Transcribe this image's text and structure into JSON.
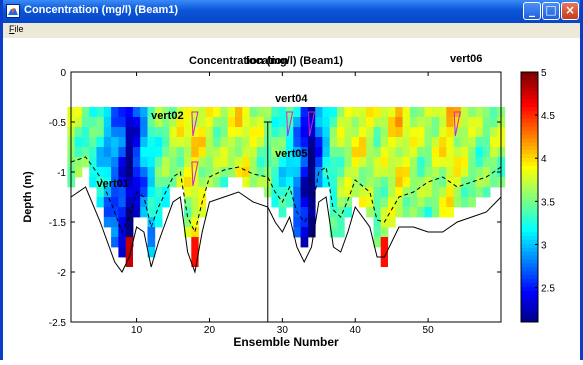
{
  "window": {
    "title": "Concentration (mg/l) (Beam1)",
    "menu": [
      {
        "label": "File"
      }
    ],
    "controls": {
      "minimize": "minimize",
      "maximize": "maximize",
      "close": "close"
    }
  },
  "plot": {
    "title_overlap": "Concentration (mg/l) (Beam1)",
    "xlabel": "Ensemble Number",
    "ylabel": "Depth (m)",
    "x_ticks": [
      "10",
      "20",
      "30",
      "40",
      "50"
    ],
    "y_ticks": [
      "0",
      "-0.5",
      "-1",
      "-1.5",
      "-2",
      "-2.5"
    ],
    "colorbar_ticks": [
      "5",
      "4.5",
      "4",
      "3.5",
      "3",
      "2.5"
    ],
    "vertical_labels": [
      "vert01",
      "vert02",
      "vert04",
      "vert05",
      "vert06"
    ],
    "overlapping_text": "location"
  },
  "colors": {
    "titlebar": "#0a55d8",
    "window_border": "#0a3ec8",
    "close_button": "#c73a1a"
  },
  "chart_data": {
    "type": "heatmap",
    "title": "Concentration (mg/l) (Beam1)",
    "xlabel": "Ensemble Number",
    "ylabel": "Depth (m)",
    "xlim": [
      1,
      60
    ],
    "ylim": [
      -2.5,
      0
    ],
    "colorbar_range": [
      2.1,
      5
    ],
    "depth_bins": [
      -0.4,
      -0.5,
      -0.6,
      -0.7,
      -0.8,
      -0.9,
      -1.0,
      -1.1,
      -1.2,
      -1.3,
      -1.4,
      -1.5,
      -1.6,
      -1.7,
      -1.8
    ],
    "mean_concentration_by_ensemble": [
      3.7,
      3.6,
      3.5,
      3.4,
      3.3,
      3.1,
      2.9,
      2.7,
      2.3,
      2.6,
      3.0,
      3.3,
      3.5,
      3.6,
      3.7,
      3.8,
      3.9,
      4.0,
      3.9,
      3.8,
      3.7,
      3.7,
      3.8,
      3.9,
      3.9,
      3.8,
      3.7,
      3.6,
      3.5,
      3.4,
      3.3,
      3.0,
      2.6,
      2.2,
      2.8,
      3.2,
      3.5,
      3.7,
      3.8,
      3.9,
      3.9,
      3.8,
      3.7,
      3.8,
      3.9,
      4.0,
      3.9,
      3.8,
      3.7,
      3.7,
      3.8,
      3.9,
      4.0,
      3.9,
      3.8,
      3.7,
      3.6,
      3.6,
      3.7,
      3.7
    ],
    "bottom_depth": {
      "x": [
        1,
        3,
        5,
        7,
        8,
        9,
        10,
        11,
        12,
        13,
        15,
        16,
        17,
        18,
        19,
        20,
        22,
        24,
        26,
        28,
        29,
        30,
        31,
        32,
        33,
        34,
        35,
        36,
        37,
        38,
        39,
        40,
        42,
        43,
        44,
        46,
        48,
        50,
        52,
        54,
        56,
        58,
        60
      ],
      "y": [
        -1.25,
        -1.15,
        -1.5,
        -1.9,
        -2.0,
        -1.85,
        -1.55,
        -1.6,
        -1.95,
        -1.7,
        -1.3,
        -1.25,
        -1.8,
        -2.0,
        -1.6,
        -1.3,
        -1.25,
        -1.2,
        -1.3,
        -1.35,
        -1.5,
        -1.6,
        -1.45,
        -1.75,
        -1.9,
        -1.75,
        -1.3,
        -1.25,
        -1.75,
        -1.8,
        -1.6,
        -1.35,
        -1.55,
        -1.85,
        -1.85,
        -1.55,
        -1.55,
        -1.6,
        -1.6,
        -1.5,
        -1.45,
        -1.4,
        -1.25
      ]
    },
    "water_level_dashed": {
      "x": [
        1,
        3,
        5,
        7,
        8,
        9,
        10,
        11,
        12,
        13,
        15,
        16,
        17,
        18,
        19,
        20,
        22,
        24,
        26,
        28,
        29,
        30,
        31,
        32,
        33,
        34,
        35,
        36,
        37,
        38,
        39,
        40,
        42,
        43,
        44,
        46,
        48,
        50,
        52,
        54,
        56,
        58,
        60
      ],
      "y": [
        -0.9,
        -0.85,
        -1.05,
        -1.4,
        -1.6,
        -1.45,
        -1.2,
        -1.25,
        -1.55,
        -1.35,
        -1.05,
        -1.0,
        -1.45,
        -1.6,
        -1.3,
        -1.05,
        -0.98,
        -0.95,
        -1.02,
        -1.05,
        -1.2,
        -1.3,
        -1.15,
        -1.4,
        -1.5,
        -1.4,
        -1.0,
        -0.95,
        -1.38,
        -1.45,
        -1.28,
        -1.08,
        -1.2,
        -1.48,
        -1.5,
        -1.25,
        -1.2,
        -1.1,
        -1.05,
        -1.15,
        -1.1,
        -1.05,
        -0.95
      ]
    },
    "markers": [
      {
        "label": "vert01",
        "x": 4.5,
        "y": -1.15
      },
      {
        "label": "vert02",
        "x": 12,
        "y": -0.47
      },
      {
        "label": "vert04",
        "x": 29,
        "y": -0.3
      },
      {
        "label": "vert05",
        "x": 29,
        "y": -0.85
      },
      {
        "label": "vert06",
        "x": 53,
        "y": 0.1
      }
    ],
    "vertical_line_x": 28,
    "triangle_markers_x": [
      18,
      31,
      34,
      54
    ],
    "high_value_cells": [
      {
        "x": 9,
        "y": -1.8,
        "value": 4.8
      },
      {
        "x": 18,
        "y": -1.8,
        "value": 4.6
      },
      {
        "x": 44,
        "y": -1.8,
        "value": 4.6
      }
    ]
  }
}
